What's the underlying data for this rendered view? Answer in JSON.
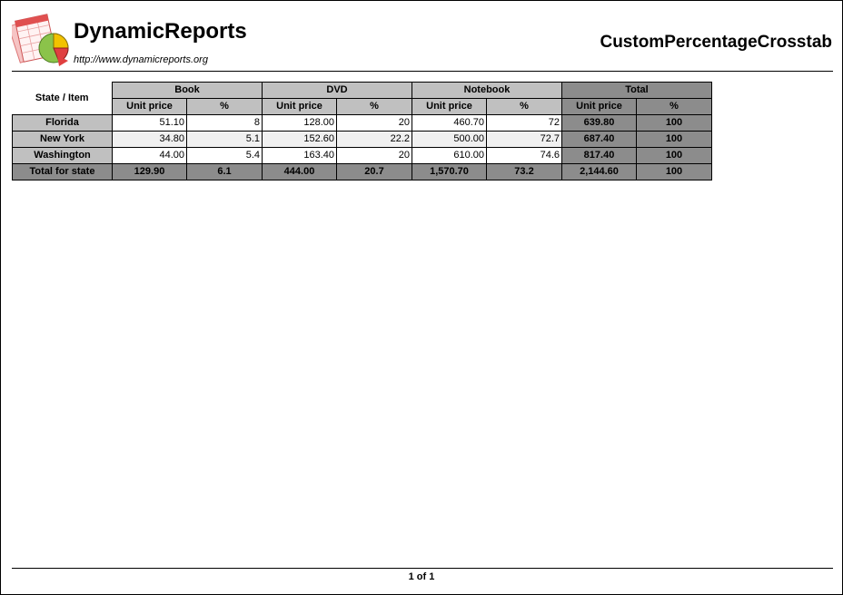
{
  "header": {
    "brand": "DynamicReports",
    "url": "http://www.dynamicreports.org",
    "report_title": "CustomPercentageCrosstab"
  },
  "crosstab": {
    "corner_label": "State / Item",
    "groups": [
      "Book",
      "DVD",
      "Notebook"
    ],
    "total_label": "Total",
    "measure_labels": [
      "Unit price",
      "%"
    ],
    "rows": [
      {
        "state": "Florida",
        "values": [
          "51.10",
          "8",
          "128.00",
          "20",
          "460.70",
          "72"
        ],
        "total": [
          "639.80",
          "100"
        ]
      },
      {
        "state": "New York",
        "values": [
          "34.80",
          "5.1",
          "152.60",
          "22.2",
          "500.00",
          "72.7"
        ],
        "total": [
          "687.40",
          "100"
        ]
      },
      {
        "state": "Washington",
        "values": [
          "44.00",
          "5.4",
          "163.40",
          "20",
          "610.00",
          "74.6"
        ],
        "total": [
          "817.40",
          "100"
        ]
      }
    ],
    "total_row": {
      "label": "Total for state",
      "values": [
        "129.90",
        "6.1",
        "444.00",
        "20.7",
        "1,570.70",
        "73.2"
      ],
      "total": [
        "2,144.60",
        "100"
      ]
    }
  },
  "footer": {
    "page_label": "1 of 1"
  },
  "colors": {
    "header_gray": "#c0c0c0",
    "total_gray": "#8c8c8c",
    "alt_row": "#f0f0f0"
  }
}
